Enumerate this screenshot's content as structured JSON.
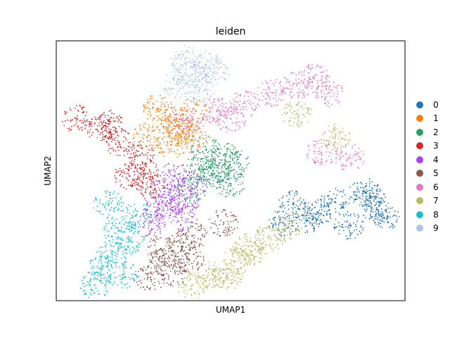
{
  "chart_data": {
    "type": "scatter",
    "title": "leiden",
    "xlabel": "UMAP1",
    "ylabel": "UMAP2",
    "xlim": [
      0,
      10
    ],
    "ylim": [
      0,
      10
    ],
    "ticks": "none",
    "grid": false,
    "legend_position": "right",
    "series": [
      {
        "name": "0",
        "color": "#1f77b4",
        "x": [
          6.5,
          7.5,
          8.0,
          9.0,
          9.2,
          8.4,
          7.2,
          6.8,
          8.8,
          9.4
        ],
        "y": [
          3.0,
          3.4,
          3.8,
          4.0,
          3.5,
          2.9,
          3.1,
          3.7,
          4.2,
          3.2
        ]
      },
      {
        "name": "1",
        "color": "#ff7f0e",
        "x": [
          2.6,
          3.2,
          3.5,
          3.9,
          4.0,
          3.3,
          2.9,
          3.6
        ],
        "y": [
          6.3,
          7.0,
          6.7,
          6.2,
          7.3,
          6.0,
          7.4,
          6.5
        ]
      },
      {
        "name": "2",
        "color": "#279e68",
        "x": [
          3.9,
          4.5,
          4.8,
          5.1,
          4.3,
          4.6,
          4.1,
          5.0
        ],
        "y": [
          4.3,
          5.0,
          5.6,
          5.3,
          5.8,
          4.8,
          5.1,
          4.5
        ]
      },
      {
        "name": "3",
        "color": "#d62728",
        "x": [
          0.6,
          1.3,
          1.8,
          2.4,
          2.1,
          2.7,
          1.5,
          2.5
        ],
        "y": [
          7.0,
          6.6,
          6.1,
          5.6,
          4.8,
          4.4,
          6.8,
          5.0
        ]
      },
      {
        "name": "4",
        "color": "#aa40fc",
        "x": [
          2.7,
          3.3,
          3.9,
          3.6,
          3.1,
          2.9,
          3.7,
          3.4
        ],
        "y": [
          3.0,
          3.8,
          4.5,
          3.2,
          4.2,
          3.5,
          3.9,
          4.8
        ]
      },
      {
        "name": "5",
        "color": "#8c564b",
        "x": [
          2.7,
          3.1,
          3.6,
          3.9,
          3.4,
          3.0,
          3.8,
          4.8
        ],
        "y": [
          0.9,
          1.5,
          2.1,
          2.5,
          1.1,
          2.0,
          1.6,
          3.0
        ]
      },
      {
        "name": "6",
        "color": "#e377c2",
        "x": [
          3.8,
          4.6,
          5.4,
          6.2,
          6.9,
          7.4,
          7.8,
          5.0,
          7.6,
          8.4
        ],
        "y": [
          6.9,
          7.3,
          7.6,
          8.0,
          8.3,
          8.6,
          8.0,
          7.0,
          5.7,
          5.5
        ]
      },
      {
        "name": "7",
        "color": "#b5bd61",
        "x": [
          3.9,
          4.5,
          5.1,
          5.6,
          6.1,
          6.6,
          4.9,
          5.5,
          6.9,
          8.0
        ],
        "y": [
          0.6,
          1.0,
          1.5,
          1.9,
          2.4,
          2.8,
          0.9,
          2.1,
          7.2,
          6.3
        ]
      },
      {
        "name": "8",
        "color": "#17becf",
        "x": [
          1.1,
          1.3,
          1.6,
          1.8,
          1.5,
          2.1,
          1.9,
          2.3
        ],
        "y": [
          0.6,
          1.2,
          1.8,
          2.7,
          3.7,
          2.3,
          1.0,
          3.3
        ]
      },
      {
        "name": "9",
        "color": "#aec7e8",
        "x": [
          3.5,
          3.9,
          4.3,
          3.7,
          4.1,
          4.5
        ],
        "y": [
          8.3,
          8.7,
          9.1,
          9.3,
          8.1,
          8.8
        ]
      }
    ]
  }
}
